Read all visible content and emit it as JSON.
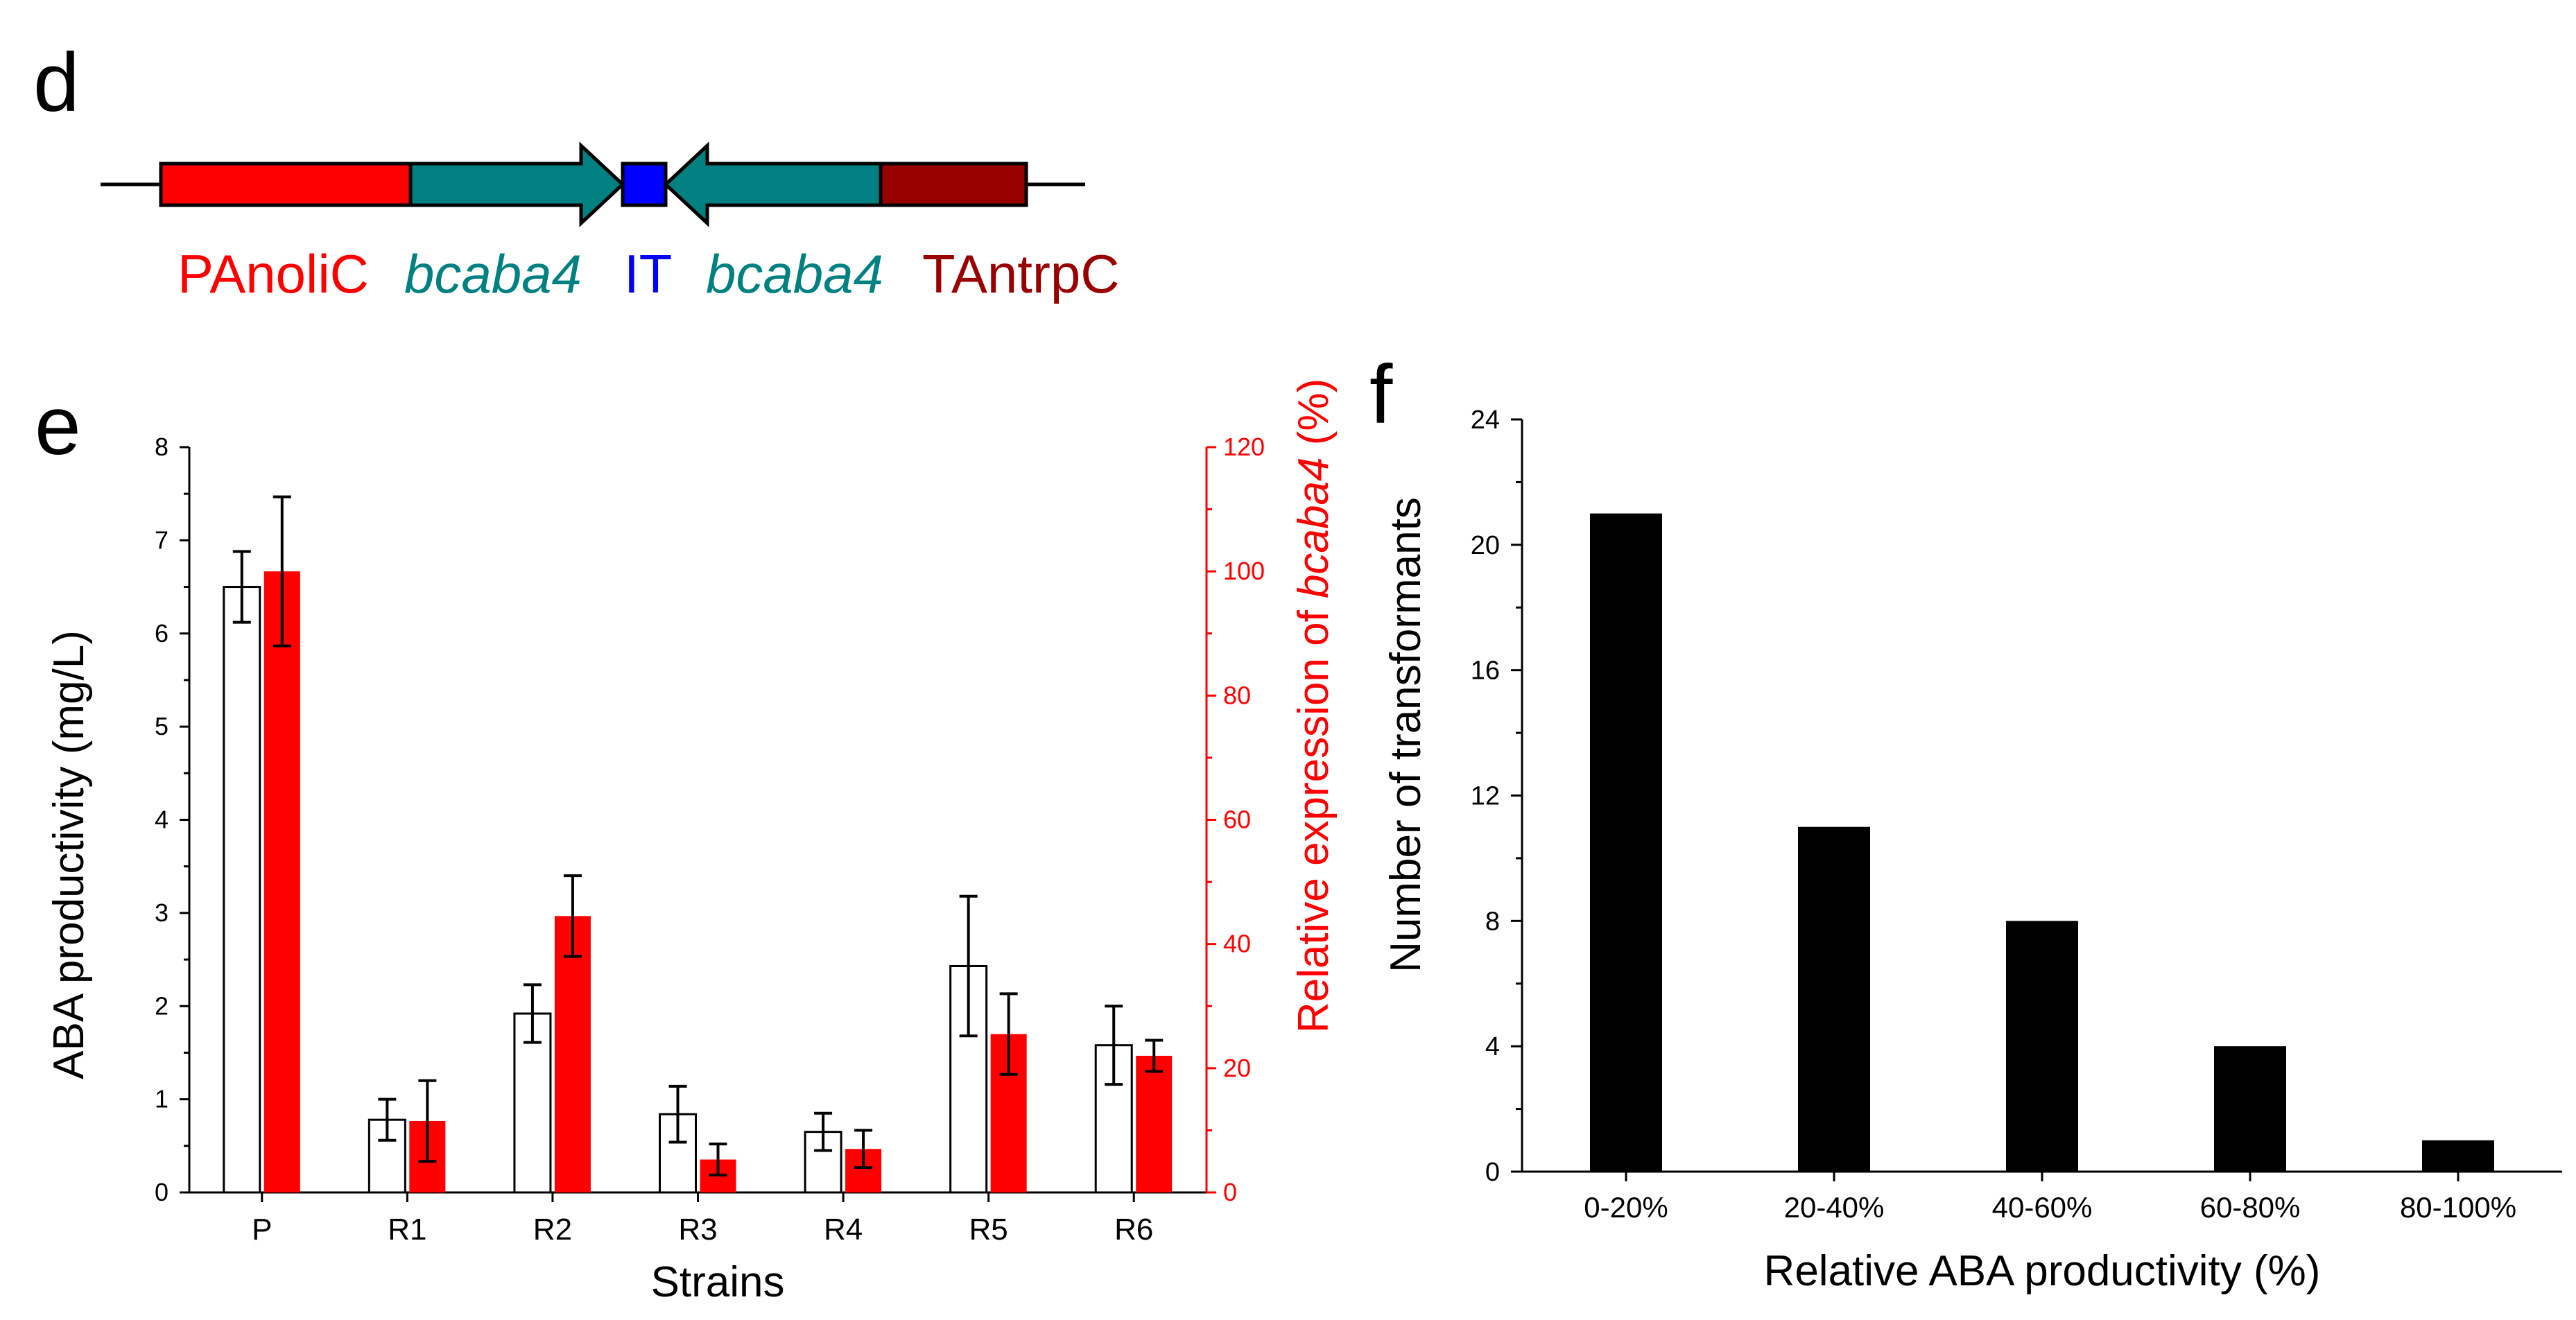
{
  "panels": {
    "d": {
      "letter": "d"
    },
    "e": {
      "letter": "e"
    },
    "f": {
      "letter": "f"
    }
  },
  "construct": {
    "labels": {
      "promoter": "PAnoliC",
      "gene_fwd": "bcaba4",
      "intron": "IT",
      "gene_rev": "bcaba4",
      "terminator": "TAntrpC"
    },
    "colors": {
      "promoter": "#ff0000",
      "gene": "#008080",
      "intron": "#0000ff",
      "terminator": "#990000"
    }
  },
  "colors": {
    "red": "#ff0000",
    "black": "#000000",
    "white": "#ffffff"
  },
  "chart_data": [
    {
      "type": "bar",
      "panel": "e",
      "categories": [
        "P",
        "R1",
        "R2",
        "R3",
        "R4",
        "R5",
        "R6"
      ],
      "series": [
        {
          "axis": "left",
          "style": "open-bar",
          "values": [
            6.5,
            0.78,
            1.92,
            0.84,
            0.65,
            2.43,
            1.58
          ],
          "errors": [
            0.38,
            0.22,
            0.31,
            0.3,
            0.2,
            0.75,
            0.42
          ]
        },
        {
          "axis": "right",
          "style": "red-bar",
          "values": [
            100,
            11.5,
            44.5,
            5.3,
            7,
            25.5,
            22
          ],
          "errors": [
            12,
            6.5,
            6.5,
            2.5,
            3,
            6.5,
            2.5
          ]
        }
      ],
      "xlabel": "Strains",
      "ylabel": "ABA productivity (mg/L)",
      "ylabel2_prefix": "Relative expression of ",
      "ylabel2_gene": "bcaba4",
      "ylabel2_suffix": " (%)",
      "ylim": [
        0,
        8
      ],
      "yticks": [
        "0",
        "1",
        "2",
        "3",
        "4",
        "5",
        "6",
        "7",
        "8"
      ],
      "ylim2": [
        0,
        120
      ],
      "yticks2": [
        "0",
        "20",
        "40",
        "60",
        "80",
        "100",
        "120"
      ]
    },
    {
      "type": "bar",
      "panel": "f",
      "categories": [
        "0-20%",
        "20-40%",
        "40-60%",
        "60-80%",
        "80-100%"
      ],
      "values": [
        21,
        11,
        8,
        4,
        1
      ],
      "xlabel": "Relative ABA productivity (%)",
      "ylabel": "Number of transformants",
      "ylim": [
        0,
        24
      ],
      "yticks": [
        "0",
        "4",
        "8",
        "12",
        "16",
        "20",
        "24"
      ]
    }
  ]
}
